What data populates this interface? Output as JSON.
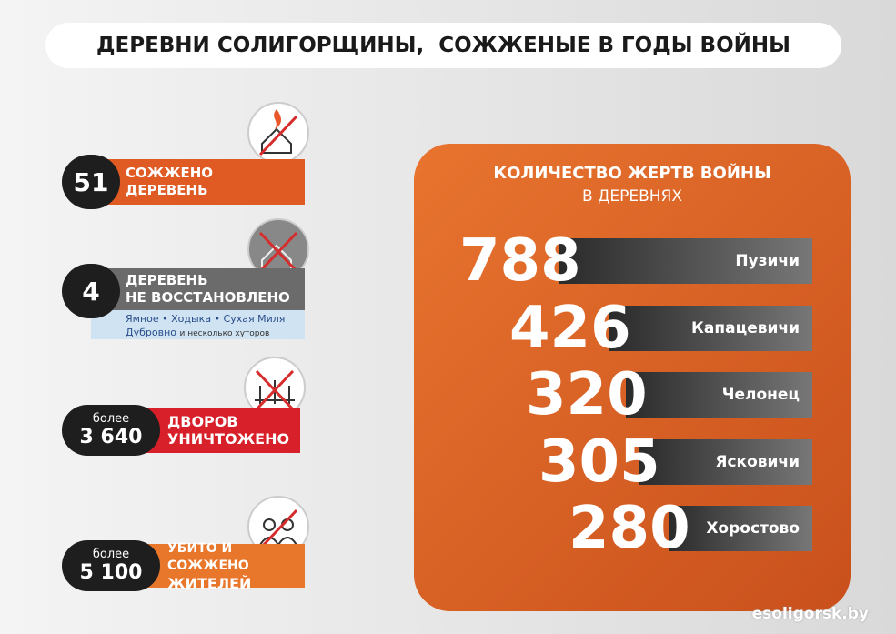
{
  "header": {
    "title": "ДЕРЕВНИ СОЛИГОРЩИНЫ,  СОЖЖЕНЫЕ В ГОДЫ ВОЙНЫ"
  },
  "stats": [
    {
      "number": "51",
      "label": [
        "СОЖЖЕНО",
        "ДЕРЕВЕНЬ"
      ]
    },
    {
      "number": "4",
      "label": [
        "ДЕРЕВЕНЬ",
        "НЕ ВОССТАНОВЛЕНО"
      ],
      "note": [
        "Ямное • Ходыка • Сухая Миля",
        "Дубровно",
        "и несколько хуторов"
      ]
    },
    {
      "prefix": "более",
      "number": "3 640",
      "label": [
        "ДВОРОВ",
        "УНИЧТОЖЕНО"
      ]
    },
    {
      "prefix": "более",
      "number": "5 100",
      "label": [
        "УБИТО И СОЖЖЕНО",
        "ЖИТЕЛЕЙ"
      ]
    }
  ],
  "victims": {
    "title": "КОЛИЧЕСТВО ЖЕРТВ ВОЙНЫ",
    "subtitle": "В ДЕРЕВНЯХ",
    "rows": [
      {
        "count": 788,
        "village": "Пузичи"
      },
      {
        "count": 426,
        "village": "Капацевичи"
      },
      {
        "count": 320,
        "village": "Челонец"
      },
      {
        "count": 305,
        "village": "Ясковичи"
      },
      {
        "count": 280,
        "village": "Хоростово"
      }
    ]
  },
  "footer": {
    "source": "esoligorsk.by"
  }
}
